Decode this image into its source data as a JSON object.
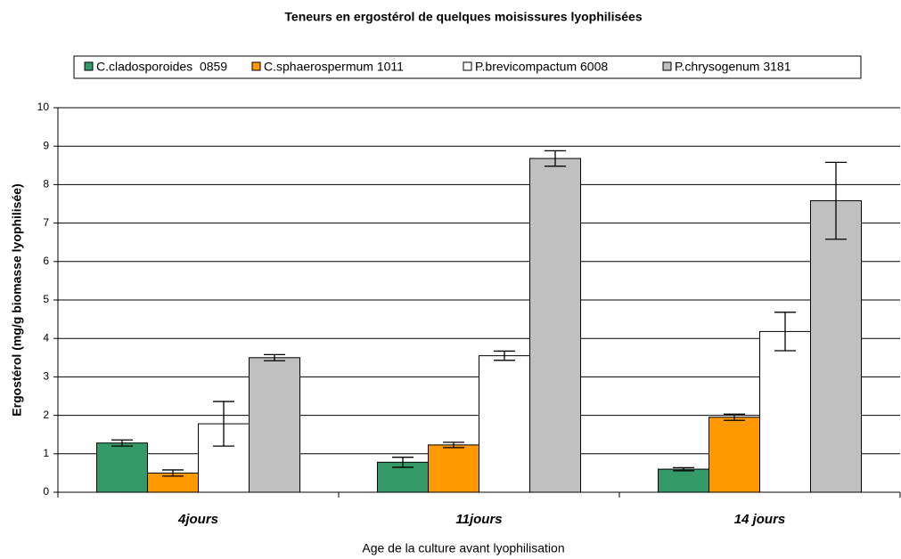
{
  "chart_data": {
    "type": "bar",
    "title": "Teneurs en ergostérol de quelques moisissures lyophilisées",
    "x_label": "Age de la culture avant lyophilisation",
    "y_label": "Ergostérol (mg/g biomasse lyophilisée)",
    "categories": [
      "4jours",
      "11jours",
      "14 jours"
    ],
    "series": [
      {
        "name": "C.cladosporoides  0859",
        "color": "#339966",
        "values": [
          1.28,
          0.78,
          0.6
        ],
        "errors": [
          0.08,
          0.13,
          0.04
        ]
      },
      {
        "name": "C.sphaerospermum 1011",
        "color": "#ff9900",
        "values": [
          0.5,
          1.23,
          1.95
        ],
        "errors": [
          0.08,
          0.07,
          0.08
        ]
      },
      {
        "name": "P.brevicompactum 6008",
        "color": "#ffffff",
        "values": [
          1.78,
          3.55,
          4.18
        ],
        "errors": [
          0.58,
          0.12,
          0.5
        ]
      },
      {
        "name": "P.chrysogenum 3181",
        "color": "#c0c0c0",
        "values": [
          3.5,
          8.68,
          7.58
        ],
        "errors": [
          0.08,
          0.2,
          1.0
        ]
      }
    ],
    "ylim": [
      0,
      10
    ],
    "yticks": [
      0,
      1,
      2,
      3,
      4,
      5,
      6,
      7,
      8,
      9,
      10
    ],
    "grid": true,
    "legend": "top"
  }
}
